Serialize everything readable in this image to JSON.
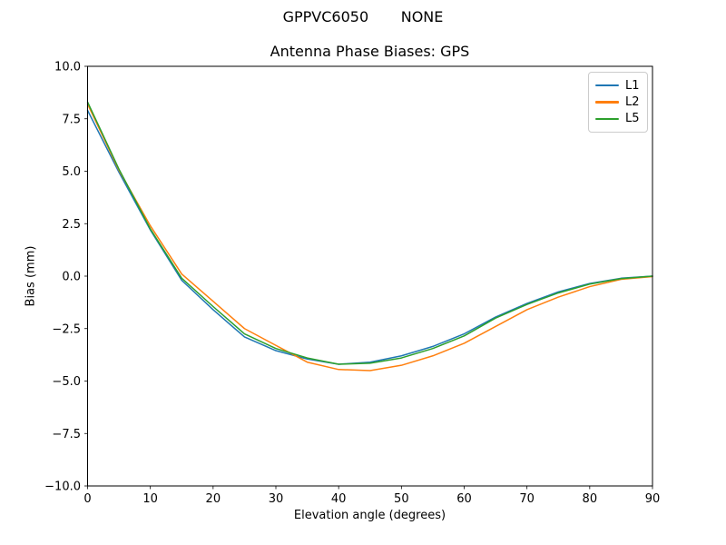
{
  "header": {
    "suptitle": "GPPVC6050       NONE"
  },
  "chart_data": {
    "type": "line",
    "suptitle": "GPPVC6050       NONE",
    "title": "Antenna Phase Biases: GPS",
    "xlabel": "Elevation angle (degrees)",
    "ylabel": "Bias (mm)",
    "xlim": [
      0,
      90
    ],
    "ylim": [
      -10,
      10
    ],
    "grid": false,
    "legend_position": "upper right",
    "x_ticks": {
      "values": [
        0,
        10,
        20,
        30,
        40,
        50,
        60,
        70,
        80,
        90
      ],
      "labels": [
        "0",
        "10",
        "20",
        "30",
        "40",
        "50",
        "60",
        "70",
        "80",
        "90"
      ]
    },
    "y_ticks": {
      "values": [
        10,
        7.5,
        5,
        2.5,
        0,
        -2.5,
        -5,
        -7.5,
        -10
      ],
      "labels": [
        "10.0",
        "7.5",
        "5.0",
        "2.5",
        "0.0",
        "−2.5",
        "−5.0",
        "−7.5",
        "−10.0"
      ]
    },
    "x": [
      0,
      5,
      10,
      15,
      20,
      25,
      30,
      35,
      40,
      45,
      50,
      55,
      60,
      65,
      70,
      75,
      80,
      85,
      90
    ],
    "series": [
      {
        "name": "L1",
        "color": "#1f77b4",
        "values": [
          7.9,
          4.95,
          2.2,
          -0.2,
          -1.6,
          -2.9,
          -3.55,
          -3.95,
          -4.2,
          -4.1,
          -3.8,
          -3.35,
          -2.75,
          -1.95,
          -1.3,
          -0.75,
          -0.35,
          -0.1,
          0.0
        ]
      },
      {
        "name": "L2",
        "color": "#ff7f0e",
        "values": [
          8.2,
          5.05,
          2.4,
          0.1,
          -1.2,
          -2.5,
          -3.3,
          -4.1,
          -4.45,
          -4.5,
          -4.25,
          -3.8,
          -3.2,
          -2.4,
          -1.6,
          -1.0,
          -0.5,
          -0.15,
          -0.02
        ]
      },
      {
        "name": "L5",
        "color": "#2ca02c",
        "values": [
          8.3,
          5.1,
          2.25,
          -0.1,
          -1.45,
          -2.75,
          -3.45,
          -3.9,
          -4.2,
          -4.15,
          -3.9,
          -3.45,
          -2.85,
          -2.0,
          -1.35,
          -0.8,
          -0.38,
          -0.12,
          0.0
        ]
      }
    ]
  }
}
